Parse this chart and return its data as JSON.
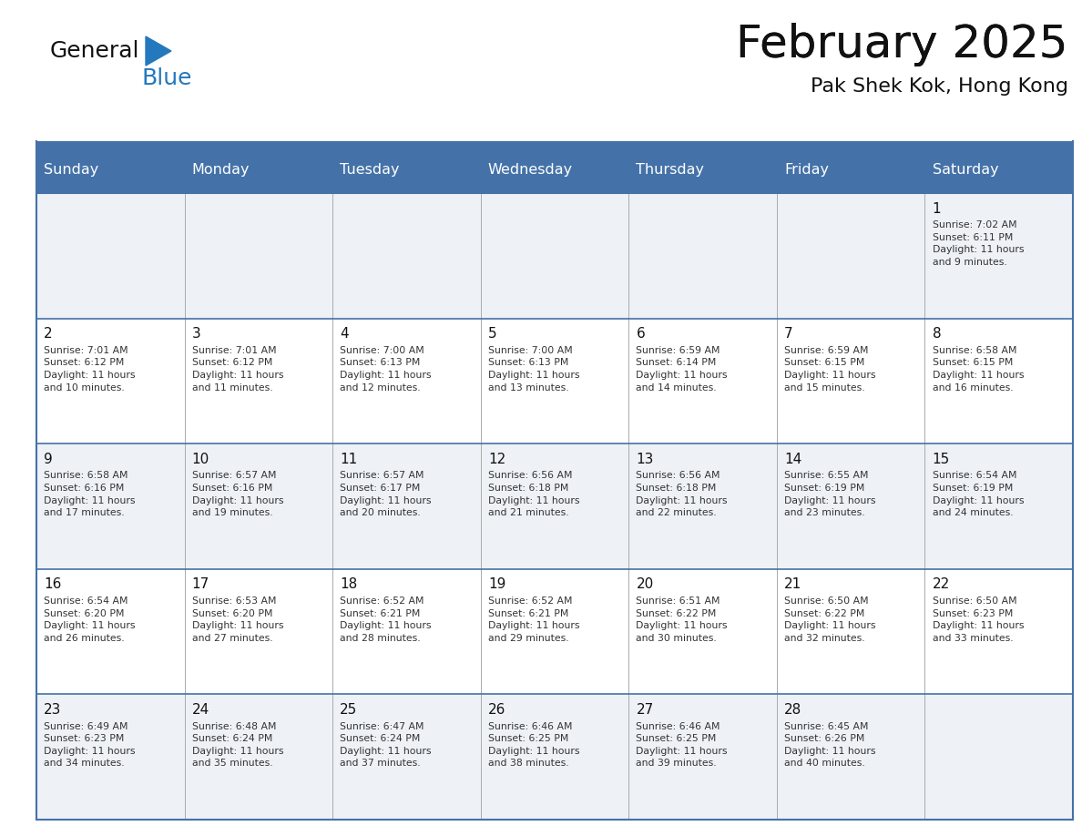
{
  "title": "February 2025",
  "subtitle": "Pak Shek Kok, Hong Kong",
  "header_bg": "#4472a8",
  "header_text_color": "#ffffff",
  "cell_bg_odd": "#eef2f7",
  "cell_bg_even": "#ffffff",
  "days_of_week": [
    "Sunday",
    "Monday",
    "Tuesday",
    "Wednesday",
    "Thursday",
    "Friday",
    "Saturday"
  ],
  "calendar_data": [
    [
      null,
      null,
      null,
      null,
      null,
      null,
      {
        "day": "1",
        "sunrise": "7:02 AM",
        "sunset": "6:11 PM",
        "daylight": "11 hours\nand 9 minutes."
      }
    ],
    [
      {
        "day": "2",
        "sunrise": "7:01 AM",
        "sunset": "6:12 PM",
        "daylight": "11 hours\nand 10 minutes."
      },
      {
        "day": "3",
        "sunrise": "7:01 AM",
        "sunset": "6:12 PM",
        "daylight": "11 hours\nand 11 minutes."
      },
      {
        "day": "4",
        "sunrise": "7:00 AM",
        "sunset": "6:13 PM",
        "daylight": "11 hours\nand 12 minutes."
      },
      {
        "day": "5",
        "sunrise": "7:00 AM",
        "sunset": "6:13 PM",
        "daylight": "11 hours\nand 13 minutes."
      },
      {
        "day": "6",
        "sunrise": "6:59 AM",
        "sunset": "6:14 PM",
        "daylight": "11 hours\nand 14 minutes."
      },
      {
        "day": "7",
        "sunrise": "6:59 AM",
        "sunset": "6:15 PM",
        "daylight": "11 hours\nand 15 minutes."
      },
      {
        "day": "8",
        "sunrise": "6:58 AM",
        "sunset": "6:15 PM",
        "daylight": "11 hours\nand 16 minutes."
      }
    ],
    [
      {
        "day": "9",
        "sunrise": "6:58 AM",
        "sunset": "6:16 PM",
        "daylight": "11 hours\nand 17 minutes."
      },
      {
        "day": "10",
        "sunrise": "6:57 AM",
        "sunset": "6:16 PM",
        "daylight": "11 hours\nand 19 minutes."
      },
      {
        "day": "11",
        "sunrise": "6:57 AM",
        "sunset": "6:17 PM",
        "daylight": "11 hours\nand 20 minutes."
      },
      {
        "day": "12",
        "sunrise": "6:56 AM",
        "sunset": "6:18 PM",
        "daylight": "11 hours\nand 21 minutes."
      },
      {
        "day": "13",
        "sunrise": "6:56 AM",
        "sunset": "6:18 PM",
        "daylight": "11 hours\nand 22 minutes."
      },
      {
        "day": "14",
        "sunrise": "6:55 AM",
        "sunset": "6:19 PM",
        "daylight": "11 hours\nand 23 minutes."
      },
      {
        "day": "15",
        "sunrise": "6:54 AM",
        "sunset": "6:19 PM",
        "daylight": "11 hours\nand 24 minutes."
      }
    ],
    [
      {
        "day": "16",
        "sunrise": "6:54 AM",
        "sunset": "6:20 PM",
        "daylight": "11 hours\nand 26 minutes."
      },
      {
        "day": "17",
        "sunrise": "6:53 AM",
        "sunset": "6:20 PM",
        "daylight": "11 hours\nand 27 minutes."
      },
      {
        "day": "18",
        "sunrise": "6:52 AM",
        "sunset": "6:21 PM",
        "daylight": "11 hours\nand 28 minutes."
      },
      {
        "day": "19",
        "sunrise": "6:52 AM",
        "sunset": "6:21 PM",
        "daylight": "11 hours\nand 29 minutes."
      },
      {
        "day": "20",
        "sunrise": "6:51 AM",
        "sunset": "6:22 PM",
        "daylight": "11 hours\nand 30 minutes."
      },
      {
        "day": "21",
        "sunrise": "6:50 AM",
        "sunset": "6:22 PM",
        "daylight": "11 hours\nand 32 minutes."
      },
      {
        "day": "22",
        "sunrise": "6:50 AM",
        "sunset": "6:23 PM",
        "daylight": "11 hours\nand 33 minutes."
      }
    ],
    [
      {
        "day": "23",
        "sunrise": "6:49 AM",
        "sunset": "6:23 PM",
        "daylight": "11 hours\nand 34 minutes."
      },
      {
        "day": "24",
        "sunrise": "6:48 AM",
        "sunset": "6:24 PM",
        "daylight": "11 hours\nand 35 minutes."
      },
      {
        "day": "25",
        "sunrise": "6:47 AM",
        "sunset": "6:24 PM",
        "daylight": "11 hours\nand 37 minutes."
      },
      {
        "day": "26",
        "sunrise": "6:46 AM",
        "sunset": "6:25 PM",
        "daylight": "11 hours\nand 38 minutes."
      },
      {
        "day": "27",
        "sunrise": "6:46 AM",
        "sunset": "6:25 PM",
        "daylight": "11 hours\nand 39 minutes."
      },
      {
        "day": "28",
        "sunrise": "6:45 AM",
        "sunset": "6:26 PM",
        "daylight": "11 hours\nand 40 minutes."
      },
      null
    ]
  ],
  "logo_general_color": "#111111",
  "logo_blue_color": "#2478be",
  "separator_color": "#4472a8",
  "row_separator_color": "#4472a8",
  "col_separator_color": "#aaaaaa",
  "outer_border_color": "#4472a8",
  "fig_width": 11.88,
  "fig_height": 9.18
}
